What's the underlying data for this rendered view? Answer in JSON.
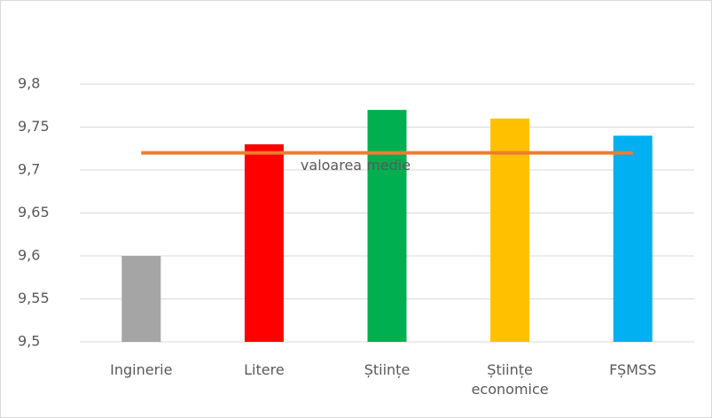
{
  "chart_data": {
    "type": "bar",
    "categories": [
      "Inginerie",
      "Litere",
      "Științe",
      "Științe economice",
      "FȘMSS"
    ],
    "values": [
      9.6,
      9.73,
      9.77,
      9.76,
      9.74
    ],
    "colors": [
      "#a5a5a5",
      "#ff0000",
      "#00b050",
      "#ffc000",
      "#00b0f0"
    ],
    "lines": [
      {
        "name": "valoarea medie",
        "color": "#ed7d31",
        "values": [
          9.72,
          9.72,
          9.72,
          9.72,
          9.72
        ]
      }
    ],
    "ylim": [
      9.5,
      9.8
    ],
    "yticks": [
      {
        "value": 9.5,
        "label": "9,5"
      },
      {
        "value": 9.55,
        "label": "9,55"
      },
      {
        "value": 9.6,
        "label": "9,6"
      },
      {
        "value": 9.65,
        "label": "9,65"
      },
      {
        "value": 9.7,
        "label": "9,7"
      },
      {
        "value": 9.75,
        "label": "9,75"
      },
      {
        "value": 9.8,
        "label": "9,8"
      }
    ],
    "grid": true
  }
}
